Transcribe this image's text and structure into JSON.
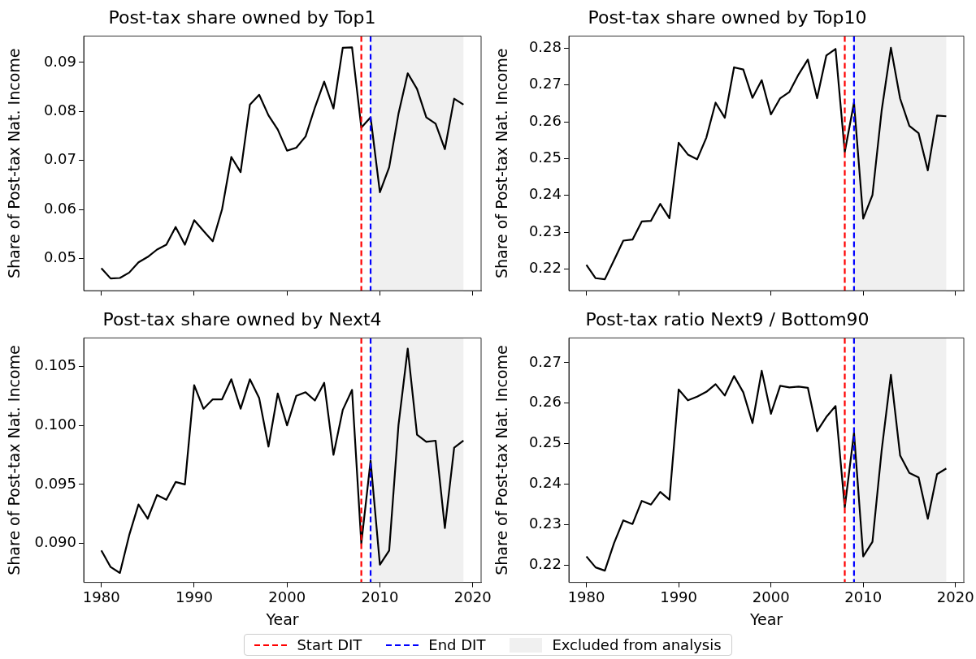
{
  "chart_data": [
    {
      "type": "line",
      "title": "Post-tax share owned by Top1",
      "ylabel": "Share of Post-tax Nat. Income",
      "x": [
        1980,
        1981,
        1982,
        1983,
        1984,
        1985,
        1986,
        1987,
        1988,
        1989,
        1990,
        1991,
        1992,
        1993,
        1994,
        1995,
        1996,
        1997,
        1998,
        1999,
        2000,
        2001,
        2002,
        2003,
        2004,
        2005,
        2006,
        2007,
        2008,
        2009,
        2010,
        2011,
        2012,
        2013,
        2014,
        2015,
        2016,
        2017,
        2018,
        2019
      ],
      "series": [
        {
          "color": "#000000",
          "values": [
            0.048,
            0.0459,
            0.046,
            0.0471,
            0.0492,
            0.0503,
            0.0518,
            0.0528,
            0.0564,
            0.0528,
            0.0578,
            0.0556,
            0.0535,
            0.06,
            0.0707,
            0.0676,
            0.0814,
            0.0834,
            0.0792,
            0.0763,
            0.072,
            0.0726,
            0.0749,
            0.0808,
            0.0861,
            0.0806,
            0.093,
            0.0931,
            0.0767,
            0.0788,
            0.0635,
            0.0686,
            0.0795,
            0.0878,
            0.0846,
            0.0788,
            0.0775,
            0.0723,
            0.0826,
            0.0814
          ]
        }
      ],
      "xlim": [
        1978.1,
        2020.9
      ],
      "xticks": [
        1980,
        1990,
        2000,
        2010,
        2020
      ],
      "ylim": [
        0.0434,
        0.0954
      ],
      "yticks": [
        0.05,
        0.06,
        0.07,
        0.08,
        0.09
      ],
      "tick_labels": "y",
      "ref_lines": [
        {
          "axis": "x",
          "value": 2008,
          "label": "Start DIT",
          "color": "#ff0000",
          "line_style": "dashed"
        },
        {
          "axis": "x",
          "value": 2009,
          "label": "End DIT",
          "color": "#0000ff",
          "line_style": "dashed"
        }
      ],
      "bands": [
        {
          "axis": "x",
          "from": 2009,
          "to": 2019,
          "label": "Excluded from analysis",
          "color": "#f0f0f0"
        }
      ],
      "legend": "bottom"
    },
    {
      "type": "line",
      "title": "Post-tax share owned by Top10",
      "ylabel": "Share of Post-tax Nat. Income",
      "x": [
        1980,
        1981,
        1982,
        1983,
        1984,
        1985,
        1986,
        1987,
        1988,
        1989,
        1990,
        1991,
        1992,
        1993,
        1994,
        1995,
        1996,
        1997,
        1998,
        1999,
        2000,
        2001,
        2002,
        2003,
        2004,
        2005,
        2006,
        2007,
        2008,
        2009,
        2010,
        2011,
        2012,
        2013,
        2014,
        2015,
        2016,
        2017,
        2018,
        2019
      ],
      "series": [
        {
          "color": "#000000",
          "values": [
            0.2211,
            0.2175,
            0.2172,
            0.2224,
            0.2277,
            0.228,
            0.2329,
            0.2331,
            0.2377,
            0.2338,
            0.2543,
            0.2511,
            0.2498,
            0.2557,
            0.2652,
            0.2611,
            0.2748,
            0.2742,
            0.2665,
            0.2713,
            0.262,
            0.2664,
            0.2681,
            0.2729,
            0.2769,
            0.2664,
            0.278,
            0.2798,
            0.2518,
            0.2652,
            0.2337,
            0.2401,
            0.2631,
            0.2801,
            0.2663,
            0.2589,
            0.2569,
            0.2468,
            0.2617,
            0.2615
          ]
        }
      ],
      "xlim": [
        1978.1,
        2020.9
      ],
      "xticks": [
        1980,
        1990,
        2000,
        2010,
        2020
      ],
      "ylim": [
        0.2141,
        0.2833
      ],
      "yticks": [
        0.22,
        0.23,
        0.24,
        0.25,
        0.26,
        0.27,
        0.28
      ],
      "tick_labels": "y",
      "ref_lines": [
        {
          "axis": "x",
          "value": 2008,
          "color": "#ff0000",
          "line_style": "dashed"
        },
        {
          "axis": "x",
          "value": 2009,
          "color": "#0000ff",
          "line_style": "dashed"
        }
      ],
      "bands": [
        {
          "axis": "x",
          "from": 2009,
          "to": 2019,
          "color": "#f0f0f0"
        }
      ]
    },
    {
      "type": "line",
      "title": "Post-tax share owned by Next4",
      "xlabel": "Year",
      "ylabel": "Share of Post-tax Nat. Income",
      "x": [
        1980,
        1981,
        1982,
        1983,
        1984,
        1985,
        1986,
        1987,
        1988,
        1989,
        1990,
        1991,
        1992,
        1993,
        1994,
        1995,
        1996,
        1997,
        1998,
        1999,
        2000,
        2001,
        2002,
        2003,
        2004,
        2005,
        2006,
        2007,
        2008,
        2009,
        2010,
        2011,
        2012,
        2013,
        2014,
        2015,
        2016,
        2017,
        2018,
        2019
      ],
      "series": [
        {
          "color": "#000000",
          "values": [
            0.0894,
            0.088,
            0.0875,
            0.0907,
            0.0933,
            0.0921,
            0.0941,
            0.0937,
            0.0952,
            0.095,
            0.1034,
            0.1014,
            0.1022,
            0.1022,
            0.1039,
            0.1014,
            0.1039,
            0.1023,
            0.0982,
            0.1027,
            0.1,
            0.1025,
            0.1028,
            0.1021,
            0.1036,
            0.0975,
            0.1013,
            0.103,
            0.09,
            0.097,
            0.0882,
            0.0894,
            0.1,
            0.1065,
            0.0992,
            0.0986,
            0.0987,
            0.0913,
            0.0981,
            0.0987
          ]
        }
      ],
      "xlim": [
        1978.1,
        2020.9
      ],
      "xticks": [
        1980,
        1990,
        2000,
        2010,
        2020
      ],
      "ylim": [
        0.0867,
        0.1074
      ],
      "yticks": [
        {
          "value": 0.09,
          "label": "0.090"
        },
        {
          "value": 0.095,
          "label": "0.095"
        },
        {
          "value": 0.1,
          "label": "0.100"
        },
        {
          "value": 0.105,
          "label": "0.105"
        }
      ],
      "ref_lines": [
        {
          "axis": "x",
          "value": 2008,
          "color": "#ff0000",
          "line_style": "dashed"
        },
        {
          "axis": "x",
          "value": 2009,
          "color": "#0000ff",
          "line_style": "dashed"
        }
      ],
      "bands": [
        {
          "axis": "x",
          "from": 2009,
          "to": 2019,
          "color": "#f0f0f0"
        }
      ]
    },
    {
      "type": "line",
      "title": "Post-tax ratio Next9 / Bottom90",
      "xlabel": "Year",
      "ylabel": "Share of Post-tax Nat. Income",
      "x": [
        1980,
        1981,
        1982,
        1983,
        1984,
        1985,
        1986,
        1987,
        1988,
        1989,
        1990,
        1991,
        1992,
        1993,
        1994,
        1995,
        1996,
        1997,
        1998,
        1999,
        2000,
        2001,
        2002,
        2003,
        2004,
        2005,
        2006,
        2007,
        2008,
        2009,
        2010,
        2011,
        2012,
        2013,
        2014,
        2015,
        2016,
        2017,
        2018,
        2019
      ],
      "series": [
        {
          "color": "#000000",
          "values": [
            0.2222,
            0.2195,
            0.2187,
            0.2255,
            0.2311,
            0.2302,
            0.2359,
            0.235,
            0.2381,
            0.2362,
            0.2634,
            0.2607,
            0.2616,
            0.2628,
            0.2647,
            0.2619,
            0.2667,
            0.2627,
            0.2551,
            0.268,
            0.2574,
            0.2643,
            0.2639,
            0.2641,
            0.2638,
            0.2531,
            0.2566,
            0.2593,
            0.2343,
            0.2527,
            0.2222,
            0.2258,
            0.2484,
            0.267,
            0.2471,
            0.2428,
            0.2417,
            0.2315,
            0.2425,
            0.2439
          ]
        }
      ],
      "xlim": [
        1978.1,
        2020.9
      ],
      "xticks": [
        1980,
        1990,
        2000,
        2010,
        2020
      ],
      "ylim": [
        0.2158,
        0.2761
      ],
      "yticks": [
        0.22,
        0.23,
        0.24,
        0.25,
        0.26,
        0.27
      ],
      "ref_lines": [
        {
          "axis": "x",
          "value": 2008,
          "color": "#ff0000",
          "line_style": "dashed"
        },
        {
          "axis": "x",
          "value": 2009,
          "color": "#0000ff",
          "line_style": "dashed"
        }
      ],
      "bands": [
        {
          "axis": "x",
          "from": 2009,
          "to": 2019,
          "color": "#f0f0f0"
        }
      ]
    }
  ]
}
